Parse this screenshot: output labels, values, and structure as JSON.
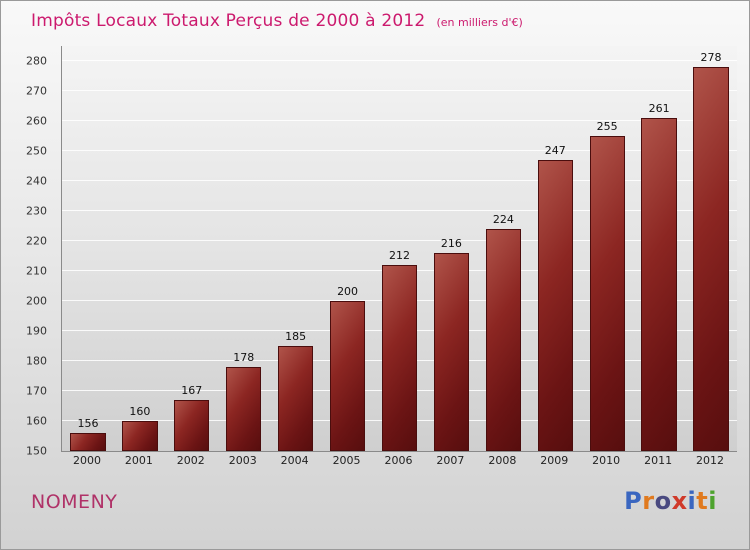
{
  "header": {
    "title": "Impôts Locaux Totaux Perçus de 2000 à 2012",
    "subtitle": "(en milliers d'€)"
  },
  "chart_data": {
    "type": "bar",
    "title": "Impôts Locaux Totaux Perçus de 2000 à 2012",
    "subtitle": "(en milliers d'€)",
    "categories": [
      "2000",
      "2001",
      "2002",
      "2003",
      "2004",
      "2005",
      "2006",
      "2007",
      "2008",
      "2009",
      "2010",
      "2011",
      "2012"
    ],
    "values": [
      156,
      160,
      167,
      178,
      185,
      200,
      212,
      216,
      224,
      247,
      255,
      261,
      278
    ],
    "xlabel": "",
    "ylabel": "",
    "ylim": [
      150,
      285
    ],
    "yticks": [
      150,
      160,
      170,
      180,
      190,
      200,
      210,
      220,
      230,
      240,
      250,
      260,
      270,
      280
    ],
    "grid": true,
    "legend": "none",
    "bar_color_gradient": [
      "#b0544a",
      "#570e0e"
    ]
  },
  "footer": {
    "location": "NOMENY",
    "brand_letters": [
      {
        "ch": "P",
        "color": "#3a66c0"
      },
      {
        "ch": "r",
        "color": "#e07a1f"
      },
      {
        "ch": "o",
        "color": "#4a4a80"
      },
      {
        "ch": "x",
        "color": "#d03a2a"
      },
      {
        "ch": "i",
        "color": "#3a66c0"
      },
      {
        "ch": "t",
        "color": "#e07a1f"
      },
      {
        "ch": "i",
        "color": "#4ea32e"
      }
    ]
  },
  "colors": {
    "title": "#cc1a6e",
    "location": "#b03268",
    "background_top": "#f9f9f9",
    "background_bottom": "#d2d2d2",
    "axis": "#8a8a8a",
    "gridline": "#ffffff"
  }
}
